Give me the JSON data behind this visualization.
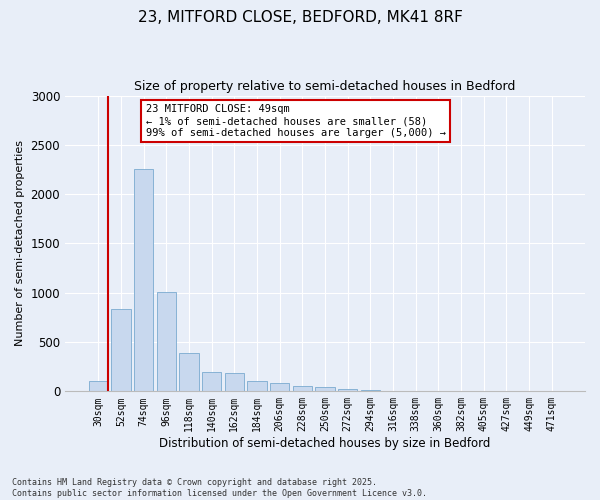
{
  "title_line1": "23, MITFORD CLOSE, BEDFORD, MK41 8RF",
  "title_line2": "Size of property relative to semi-detached houses in Bedford",
  "xlabel": "Distribution of semi-detached houses by size in Bedford",
  "ylabel": "Number of semi-detached properties",
  "categories": [
    "30sqm",
    "52sqm",
    "74sqm",
    "96sqm",
    "118sqm",
    "140sqm",
    "162sqm",
    "184sqm",
    "206sqm",
    "228sqm",
    "250sqm",
    "272sqm",
    "294sqm",
    "316sqm",
    "338sqm",
    "360sqm",
    "382sqm",
    "405sqm",
    "427sqm",
    "449sqm",
    "471sqm"
  ],
  "values": [
    100,
    840,
    2250,
    1010,
    390,
    195,
    190,
    105,
    80,
    55,
    40,
    20,
    10,
    5,
    3,
    3,
    2,
    1,
    0,
    1,
    0
  ],
  "bar_color": "#c8d8ee",
  "bar_edge_color": "#7aaad0",
  "vline_color": "#cc0000",
  "annotation_title": "23 MITFORD CLOSE: 49sqm",
  "annotation_line1": "← 1% of semi-detached houses are smaller (58)",
  "annotation_line2": "99% of semi-detached houses are larger (5,000) →",
  "annotation_box_color": "#ffffff",
  "annotation_box_edge": "#cc0000",
  "ylim": [
    0,
    3000
  ],
  "yticks": [
    0,
    500,
    1000,
    1500,
    2000,
    2500,
    3000
  ],
  "footnote_line1": "Contains HM Land Registry data © Crown copyright and database right 2025.",
  "footnote_line2": "Contains public sector information licensed under the Open Government Licence v3.0.",
  "bg_color": "#e8eef8",
  "plot_bg_color": "#e8eef8",
  "grid_color": "#ffffff",
  "spine_color": "#bbbbbb"
}
